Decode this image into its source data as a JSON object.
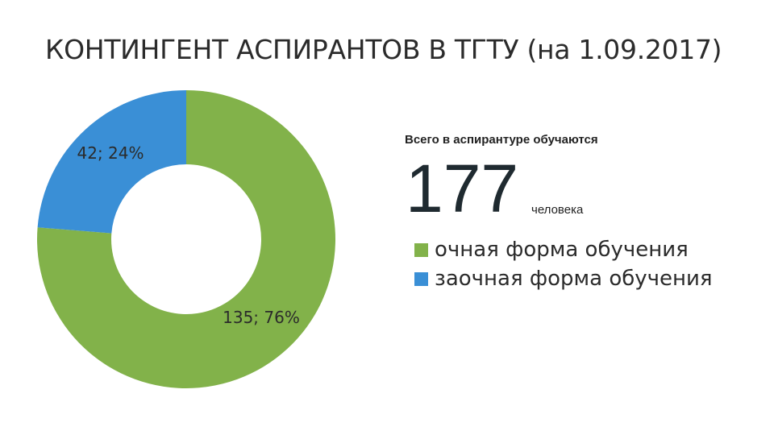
{
  "title": "КОНТИНГЕНТ АСПИРАНТОВ В ТГТУ (на 1.09.2017)",
  "summary": {
    "caption": "Всего в аспирантуре обучаются",
    "total": "177",
    "unit": "человека"
  },
  "chart_data": {
    "type": "pie",
    "variant": "donut",
    "legend_position": "right",
    "slices": [
      {
        "name": "очная форма обучения",
        "value": 135,
        "percent": 76,
        "label": "135; 76%",
        "color": "#82b24a"
      },
      {
        "name": "заочная форма обучения",
        "value": 42,
        "percent": 24,
        "label": "42; 24%",
        "color": "#3a8fd6"
      }
    ]
  }
}
